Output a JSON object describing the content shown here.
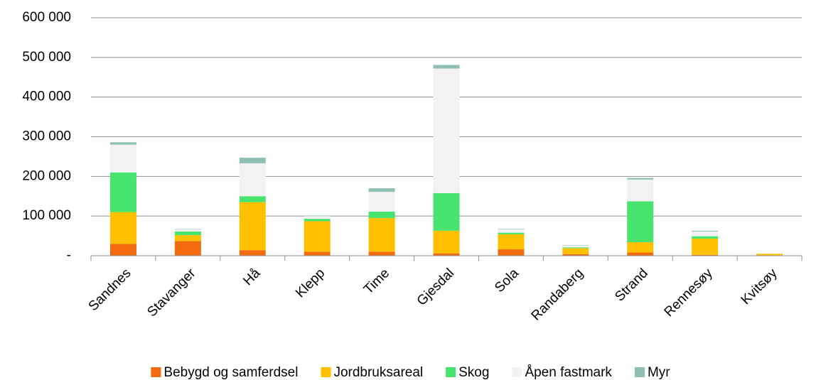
{
  "chart_data": {
    "type": "stacked_bar",
    "categories": [
      "Sandnes",
      "Stavanger",
      "Hå",
      "Klepp",
      "Time",
      "Gjesdal",
      "Sola",
      "Randaberg",
      "Strand",
      "Rennesøy",
      "Kvitsøy"
    ],
    "series": [
      {
        "name": "Bebygd og samferdsel",
        "color": "#F26B0F",
        "values": [
          30000,
          37000,
          14000,
          10000,
          10000,
          6000,
          16000,
          4000,
          8000,
          2000,
          1000
        ]
      },
      {
        "name": "Jordbruksareal",
        "color": "#FFC000",
        "values": [
          80000,
          15000,
          121000,
          77000,
          85000,
          57000,
          38000,
          15000,
          26000,
          41000,
          4000
        ]
      },
      {
        "name": "Skog",
        "color": "#46E36E",
        "values": [
          100000,
          9000,
          15000,
          6000,
          16000,
          95000,
          4000,
          2000,
          103000,
          6000,
          0
        ]
      },
      {
        "name": "Åpen fastmark",
        "color": "#F2F2F2",
        "values": [
          70000,
          5000,
          83000,
          7000,
          50000,
          314000,
          9000,
          5000,
          55000,
          12000,
          1000
        ]
      },
      {
        "name": "Myr",
        "color": "#8DBFB5",
        "values": [
          6000,
          1000,
          14000,
          1000,
          9000,
          9000,
          1000,
          1000,
          4000,
          2000,
          0
        ]
      }
    ],
    "ylim": [
      0,
      600000
    ],
    "yticks": [
      {
        "value": 0,
        "label": "-"
      },
      {
        "value": 100000,
        "label": "100 000"
      },
      {
        "value": 200000,
        "label": "200 000"
      },
      {
        "value": 300000,
        "label": "300 000"
      },
      {
        "value": 400000,
        "label": "400 000"
      },
      {
        "value": 500000,
        "label": "500 000"
      },
      {
        "value": 600000,
        "label": "600 000"
      }
    ],
    "grid": true
  }
}
